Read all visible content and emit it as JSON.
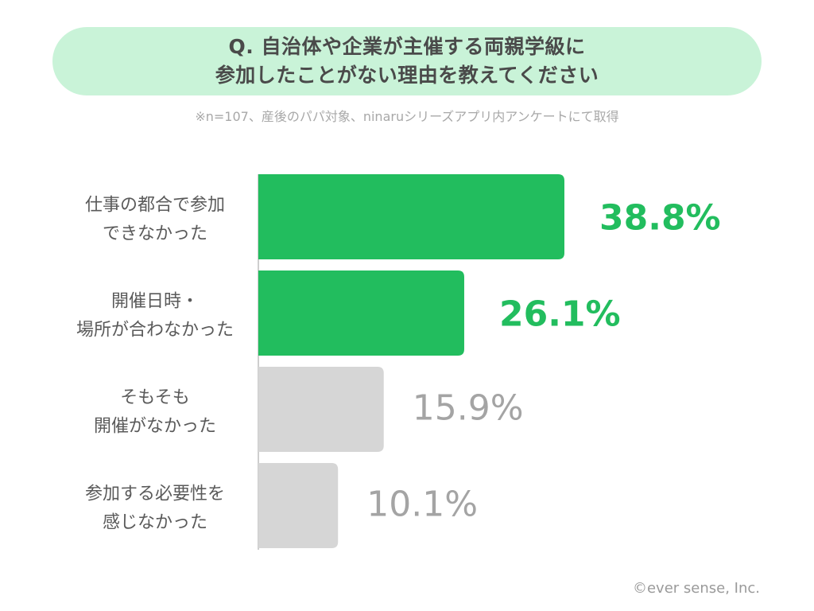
{
  "header": {
    "title_lines": [
      "Q. 自治体や企業が主催する両親学級に",
      "参加したことがない理由を教えてください"
    ],
    "note": "※n=107、産後のパパ対象、ninaruシリーズアプリ内アンケートにて取得"
  },
  "footer": {
    "copyright": "©ever sense, Inc."
  },
  "colors": {
    "highlight": "#22bd5e",
    "muted_bar": "#d6d6d6",
    "muted_text": "#a4a4a4",
    "title_bg": "#c9f3d8"
  },
  "chart_data": {
    "type": "bar",
    "orientation": "horizontal",
    "categories": [
      [
        "仕事の都合で参加",
        "できなかった"
      ],
      [
        "開催日時・",
        "場所が合わなかった"
      ],
      [
        "そもそも",
        "開催がなかった"
      ],
      [
        "参加する必要性を",
        "感じなかった"
      ]
    ],
    "values": [
      38.8,
      26.1,
      15.9,
      10.1
    ],
    "value_labels": [
      "38.8%",
      "26.1%",
      "15.9%",
      "10.1%"
    ],
    "highlighted": [
      true,
      true,
      false,
      false
    ],
    "unit": "%",
    "title": "",
    "xlabel": "",
    "ylabel": "",
    "grid": false,
    "legend": "none"
  }
}
